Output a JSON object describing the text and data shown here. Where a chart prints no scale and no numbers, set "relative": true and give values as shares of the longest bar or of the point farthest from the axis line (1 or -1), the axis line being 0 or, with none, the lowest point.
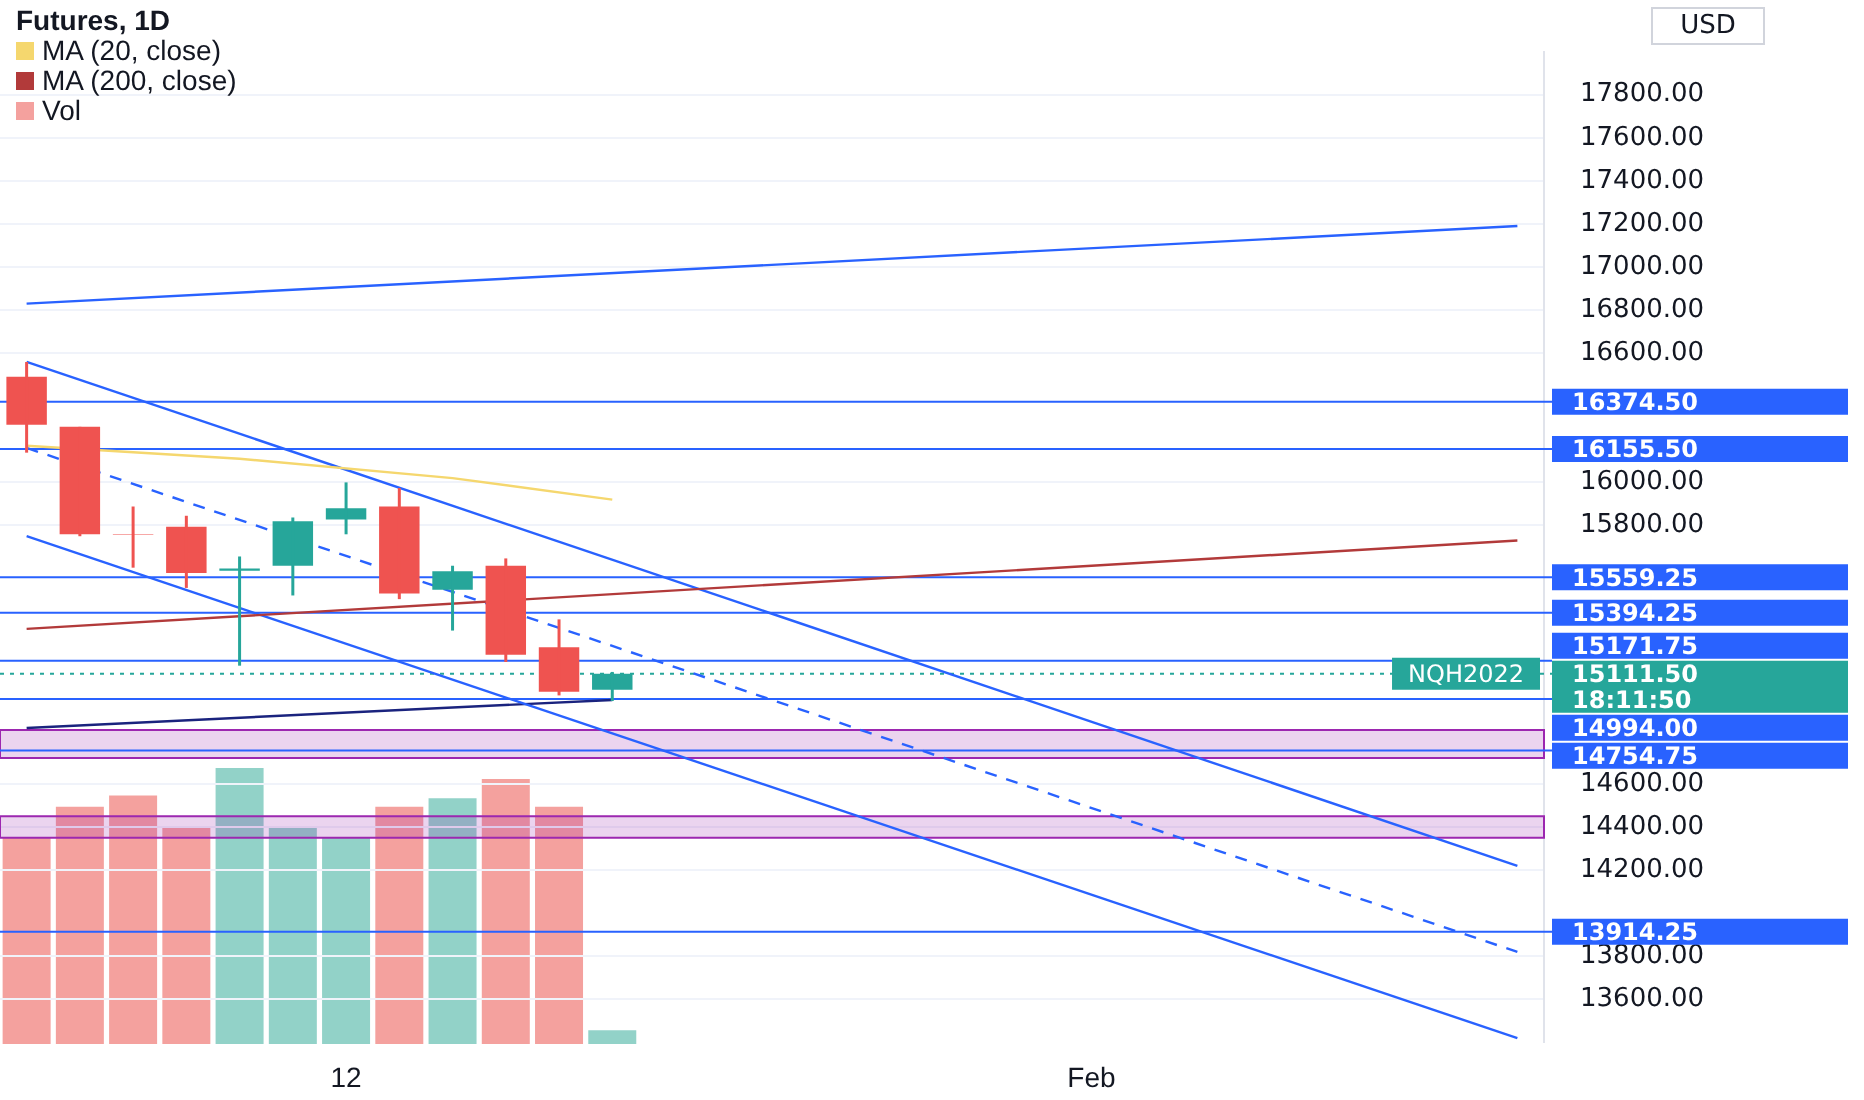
{
  "chart_data": [
    {
      "type": "candlestick",
      "title": "Futures, 1D",
      "categories": [
        null,
        null,
        null,
        null,
        null,
        null,
        "12",
        null,
        null,
        null,
        null,
        null,
        null,
        null,
        null,
        null,
        null,
        null,
        null,
        null,
        "Feb",
        null,
        null,
        null,
        null,
        null,
        null,
        null,
        null
      ],
      "ohlc": [
        [
          16490,
          16559,
          16138,
          16267
        ],
        [
          16258,
          16258,
          15750,
          15759
        ],
        [
          15760,
          15888,
          15604,
          15758
        ],
        [
          15794,
          15845,
          15510,
          15579
        ],
        [
          15590,
          15656,
          15149,
          15600
        ],
        [
          15613,
          15837,
          15475,
          15819
        ],
        [
          15828,
          16000,
          15759,
          15880
        ],
        [
          15888,
          15974,
          15458,
          15484
        ],
        [
          15501,
          15613,
          15312,
          15587
        ],
        [
          15613,
          15647,
          15166,
          15200
        ],
        [
          15235,
          15364,
          15011,
          15028
        ],
        [
          15037,
          15120,
          14985,
          15111.5
        ],
        null,
        null,
        null,
        null,
        null,
        null,
        null,
        null,
        null,
        null,
        null,
        null,
        null,
        null,
        null,
        null,
        null
      ],
      "colors": [
        "#ef5350",
        "#ef5350",
        "#ef5350",
        "#ef5350",
        "#26a69a",
        "#26a69a",
        "#26a69a",
        "#ef5350",
        "#26a69a",
        "#ef5350",
        "#ef5350",
        "#26a69a",
        null,
        null,
        null,
        null,
        null,
        null,
        null,
        null,
        null,
        null,
        null,
        null,
        null,
        null,
        null,
        null,
        null
      ],
      "series": [
        {
          "type": "line",
          "name": "MA (20, close)",
          "color": "#f5d76e",
          "values": [
            16170,
            null,
            null,
            null,
            16110,
            null,
            null,
            null,
            16020,
            null,
            null,
            15920,
            null,
            null,
            null,
            null,
            null,
            null,
            null,
            null,
            null,
            null,
            null,
            null,
            null,
            null,
            null,
            null,
            null
          ]
        },
        {
          "type": "line",
          "name": "MA (200, close)",
          "color": "#b23a3a",
          "values": [
            15320,
            null,
            null,
            null,
            null,
            null,
            null,
            null,
            null,
            null,
            null,
            null,
            null,
            null,
            null,
            null,
            null,
            null,
            null,
            null,
            null,
            null,
            null,
            null,
            null,
            null,
            null,
            null,
            15730
          ]
        },
        {
          "type": "line",
          "color": "#2962ff",
          "values": [
            16830,
            null,
            null,
            null,
            null,
            null,
            null,
            null,
            null,
            null,
            null,
            null,
            null,
            null,
            null,
            null,
            null,
            null,
            null,
            null,
            null,
            null,
            null,
            null,
            null,
            null,
            null,
            null,
            17190
          ]
        },
        {
          "type": "line",
          "color": "#2962ff",
          "values": [
            16560,
            null,
            null,
            null,
            null,
            null,
            null,
            null,
            null,
            null,
            null,
            null,
            null,
            null,
            null,
            null,
            null,
            null,
            null,
            null,
            null,
            null,
            null,
            null,
            null,
            null,
            null,
            null,
            14220
          ]
        },
        {
          "type": "line",
          "color": "#2962ff",
          "line_style": "dashed",
          "values": [
            16160,
            null,
            null,
            null,
            null,
            null,
            null,
            null,
            null,
            null,
            null,
            null,
            null,
            null,
            null,
            null,
            null,
            null,
            null,
            null,
            null,
            null,
            null,
            null,
            null,
            null,
            null,
            null,
            13820
          ]
        },
        {
          "type": "line",
          "color": "#2962ff",
          "values": [
            15750,
            null,
            null,
            null,
            null,
            null,
            null,
            null,
            null,
            null,
            null,
            null,
            null,
            null,
            null,
            null,
            null,
            null,
            null,
            null,
            null,
            null,
            null,
            null,
            null,
            null,
            null,
            null,
            13420
          ]
        },
        {
          "type": "line",
          "color": "#1a237e",
          "values": [
            14860,
            null,
            null,
            null,
            null,
            null,
            null,
            null,
            null,
            null,
            null,
            14990,
            null,
            null,
            null,
            null,
            null,
            null,
            null,
            null,
            null,
            null,
            null,
            null,
            null,
            null,
            null,
            null,
            null
          ]
        }
      ],
      "ref_lines": [
        {
          "axis": "y",
          "value": 16374.5,
          "label": "16374.50",
          "color": "#2962ff"
        },
        {
          "axis": "y",
          "value": 16155.5,
          "label": "16155.50",
          "color": "#2962ff"
        },
        {
          "axis": "y",
          "value": 15559.25,
          "label": "15559.25",
          "color": "#2962ff"
        },
        {
          "axis": "y",
          "value": 15394.25,
          "label": "15394.25",
          "color": "#2962ff"
        },
        {
          "axis": "y",
          "value": 15171.75,
          "label": "15171.75",
          "color": "#2962ff"
        },
        {
          "axis": "y",
          "value": 15111.5,
          "label": "15111.50",
          "color": "#26a69a",
          "line_style": "dotted"
        },
        {
          "axis": "y",
          "value": 14994,
          "label": "14994.00",
          "color": "#2962ff"
        },
        {
          "axis": "y",
          "value": 14754.75,
          "label": "14754.75",
          "color": "#2962ff"
        },
        {
          "axis": "y",
          "value": 13914.25,
          "label": "13914.25",
          "color": "#2962ff"
        }
      ],
      "bands": [
        {
          "axis": "y",
          "from": 14720,
          "to": 14850,
          "color": "#9c27b0"
        },
        {
          "axis": "y",
          "from": 14350,
          "to": 14450,
          "color": "#9c27b0"
        }
      ],
      "annotations": [
        {
          "text": "NQH2022",
          "y": 15111.5
        },
        "18:11:50",
        "USD"
      ],
      "ylim": [
        13400,
        18000
      ],
      "yticks": [
        {
          "value": 13600,
          "label": "13600.00"
        },
        {
          "value": 13800,
          "label": "13800.00"
        },
        {
          "value": 14200,
          "label": "14200.00"
        },
        {
          "value": 14400,
          "label": "14400.00"
        },
        {
          "value": 14600,
          "label": "14600.00"
        },
        {
          "value": 15800,
          "label": "15800.00"
        },
        {
          "value": 16000,
          "label": "16000.00"
        },
        {
          "value": 16600,
          "label": "16600.00"
        },
        {
          "value": 16800,
          "label": "16800.00"
        },
        {
          "value": 17000,
          "label": "17000.00"
        },
        {
          "value": 17200,
          "label": "17200.00"
        },
        {
          "value": 17400,
          "label": "17400.00"
        },
        {
          "value": 17600,
          "label": "17600.00"
        },
        {
          "value": 17800,
          "label": "17800.00"
        }
      ],
      "grid": "y",
      "legend": "top left"
    },
    {
      "type": "bar",
      "relative": true,
      "tick_labels": false,
      "categories": [
        null,
        null,
        null,
        null,
        null,
        null,
        null,
        null,
        null,
        null,
        null,
        null,
        null,
        null,
        null,
        null,
        null,
        null,
        null,
        null,
        null,
        null,
        null,
        null,
        null,
        null,
        null,
        null,
        null
      ],
      "series": [
        {
          "name": "Vol",
          "values": [
            0.75,
            0.86,
            0.9,
            0.79,
            1,
            0.79,
            0.75,
            0.86,
            0.89,
            0.96,
            0.86,
            0.05,
            null,
            null,
            null,
            null,
            null,
            null,
            null,
            null,
            null,
            null,
            null,
            null,
            null,
            null,
            null,
            null,
            null
          ],
          "colors": [
            "#f4a19e",
            "#f4a19e",
            "#f4a19e",
            "#f4a19e",
            "#92d2c8",
            "#92d2c8",
            "#92d2c8",
            "#f4a19e",
            "#92d2c8",
            "#f4a19e",
            "#f4a19e",
            "#92d2c8",
            null,
            null,
            null,
            null,
            null,
            null,
            null,
            null,
            null,
            null,
            null,
            null,
            null,
            null,
            null,
            null,
            null
          ]
        }
      ],
      "legend": "top left"
    }
  ]
}
